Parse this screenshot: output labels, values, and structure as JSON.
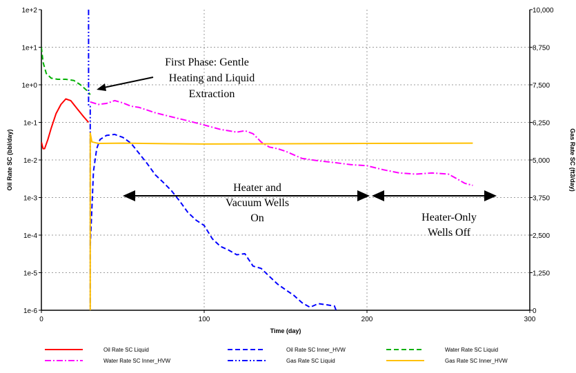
{
  "chart_data": {
    "type": "line",
    "xlabel": "Time (day)",
    "ylabel_left": "Oil Rate SC (bbl/day)",
    "ylabel_right": "Gas Rate SC (ft3/day)",
    "xlim": [
      0,
      300
    ],
    "ylim_left": [
      1e-06,
      100
    ],
    "left_scale": "log",
    "ylim_right": [
      0,
      10000
    ],
    "right_scale": "linear",
    "grid": true,
    "legend_position": "bottom",
    "x_ticks": [
      "0",
      "100",
      "200",
      "300"
    ],
    "left_ticks": [
      "1e-6",
      "1e-5",
      "1e-4",
      "1e-3",
      "1e-2",
      "1e-1",
      "1e+0",
      "1e+1",
      "1e+2"
    ],
    "right_ticks": [
      "0",
      "1,250",
      "2,500",
      "3,750",
      "5,000",
      "6,250",
      "7,500",
      "8,750",
      "10,000"
    ],
    "series": [
      {
        "name": "Oil Rate SC Liquid",
        "color": "#ff0000",
        "style": "solid",
        "axis": "left",
        "x": [
          0,
          1,
          2,
          4,
          6,
          9,
          12,
          15,
          18,
          22,
          26,
          29
        ],
        "y": [
          0.03,
          0.02,
          0.02,
          0.035,
          0.07,
          0.17,
          0.3,
          0.42,
          0.38,
          0.23,
          0.14,
          0.1
        ]
      },
      {
        "name": "Oil Rate SC Inner_HVW",
        "color": "#0000ff",
        "style": "dashed",
        "axis": "left",
        "x": [
          30,
          31,
          32,
          34,
          36,
          40,
          45,
          50,
          55,
          60,
          65,
          70,
          75,
          80,
          85,
          90,
          95,
          100,
          105,
          110,
          115,
          120,
          125,
          130,
          135,
          140,
          145,
          150,
          155,
          160,
          165,
          170,
          175,
          180,
          181
        ],
        "y": [
          5e-05,
          0.0005,
          0.005,
          0.02,
          0.035,
          0.045,
          0.048,
          0.04,
          0.028,
          0.015,
          0.008,
          0.004,
          0.0025,
          0.0015,
          0.0008,
          0.0004,
          0.00025,
          0.00018,
          8e-05,
          5e-05,
          4e-05,
          3e-05,
          3.2e-05,
          1.5e-05,
          1.3e-05,
          8e-06,
          5e-06,
          3.5e-06,
          2.5e-06,
          1.6e-06,
          1.2e-06,
          1.5e-06,
          1.4e-06,
          1.3e-06,
          1e-06
        ]
      },
      {
        "name": "Water Rate SC Liquid",
        "color": "#00b000",
        "style": "dashed",
        "axis": "left",
        "x": [
          0,
          1,
          3,
          6,
          10,
          15,
          20,
          24,
          28,
          30
        ],
        "y": [
          10,
          4,
          2,
          1.5,
          1.4,
          1.4,
          1.3,
          1.0,
          0.7,
          0.55
        ]
      },
      {
        "name": "Water Rate SC Inner_HVW",
        "color": "#ff00ff",
        "style": "dashdot",
        "axis": "left",
        "x": [
          30,
          35,
          40,
          45,
          50,
          55,
          60,
          70,
          80,
          90,
          100,
          110,
          120,
          125,
          130,
          135,
          140,
          145,
          150,
          160,
          170,
          180,
          190,
          200,
          210,
          220,
          230,
          240,
          250,
          255,
          260,
          265
        ],
        "y": [
          0.35,
          0.3,
          0.32,
          0.38,
          0.33,
          0.27,
          0.25,
          0.18,
          0.14,
          0.11,
          0.085,
          0.065,
          0.055,
          0.06,
          0.05,
          0.03,
          0.022,
          0.02,
          0.017,
          0.011,
          0.0095,
          0.0085,
          0.0075,
          0.007,
          0.0055,
          0.0045,
          0.0042,
          0.0045,
          0.0042,
          0.0032,
          0.0024,
          0.0021
        ]
      },
      {
        "name": "Gas Rate SC Liquid",
        "color": "#0000ff",
        "style": "dashdotdot",
        "axis": "right",
        "x": [
          29,
          29,
          30,
          30
        ],
        "y": [
          10000,
          6800,
          6800,
          0
        ]
      },
      {
        "name": "Gas Rate SC Inner_HVW",
        "color": "#ffc000",
        "style": "solid",
        "axis": "right",
        "x": [
          30,
          30,
          31,
          35,
          50,
          80,
          100,
          150,
          200,
          265
        ],
        "y": [
          0,
          5900,
          5600,
          5550,
          5560,
          5540,
          5530,
          5540,
          5550,
          5560
        ]
      }
    ]
  },
  "annotations": {
    "first_phase": [
      "First Phase: Gentle",
      "Heating and Liquid",
      "Extraction"
    ],
    "heater_vacuum": [
      "Heater and",
      "Vacuum Wells",
      "On"
    ],
    "heater_only": [
      "Heater-Only",
      "Wells Off"
    ]
  }
}
